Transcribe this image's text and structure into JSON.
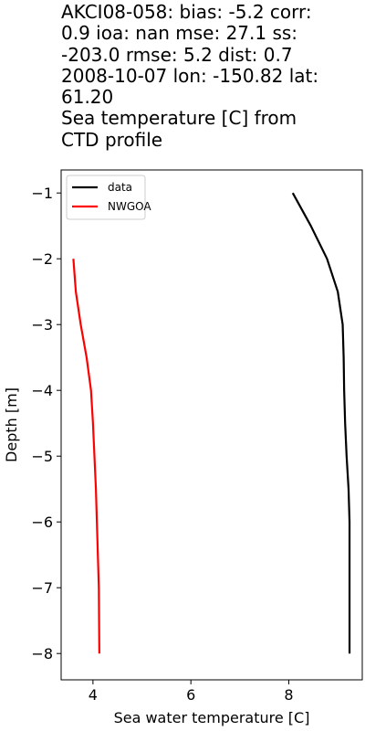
{
  "chart_data": {
    "type": "line",
    "title_lines": [
      "AKCI08-058: bias: -5.2  corr:",
      "0.9  ioa: nan  mse: 27.1  ss:",
      "-203.0  rmse: 5.2  dist: 0.7",
      "2008-10-07 lon: -150.82 lat:",
      "61.20",
      "Sea temperature [C] from",
      "CTD profile"
    ],
    "xlabel": "Sea water temperature [C]",
    "ylabel": "Depth [m]",
    "xlim": [
      3.35,
      9.5
    ],
    "ylim": [
      -8.4,
      -0.65
    ],
    "xticks": [
      4,
      6,
      8
    ],
    "yticks": [
      -1,
      -2,
      -3,
      -4,
      -5,
      -6,
      -7,
      -8
    ],
    "grid": false,
    "legend_position": "upper-left",
    "series": [
      {
        "name": "data",
        "color": "#000000",
        "x": [
          8.08,
          8.45,
          8.78,
          9.0,
          9.1,
          9.12,
          9.13,
          9.15,
          9.18,
          9.22,
          9.24,
          9.24,
          9.24,
          9.24,
          9.24
        ],
        "y": [
          -1.0,
          -1.5,
          -2.0,
          -2.5,
          -3.0,
          -3.5,
          -4.0,
          -4.5,
          -5.0,
          -5.5,
          -6.0,
          -6.5,
          -7.0,
          -7.5,
          -8.0
        ]
      },
      {
        "name": "NWGOA",
        "color": "#ff0000",
        "x": [
          3.6,
          3.65,
          3.75,
          3.87,
          3.96,
          4.0,
          4.03,
          4.06,
          4.08,
          4.1,
          4.12,
          4.13
        ],
        "y": [
          -2.0,
          -2.5,
          -3.0,
          -3.5,
          -4.0,
          -4.5,
          -5.0,
          -5.5,
          -6.0,
          -6.5,
          -7.0,
          -8.0
        ]
      }
    ]
  }
}
